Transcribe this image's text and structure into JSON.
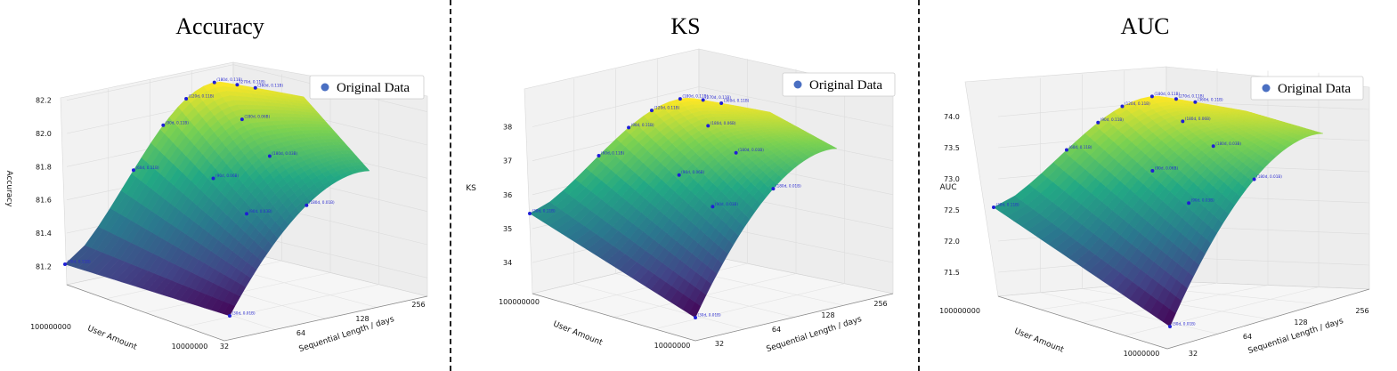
{
  "chart_data": [
    {
      "type": "surface3d",
      "title": "Accuracy",
      "zlabel": "Accuracy",
      "xlabel": "User Amount",
      "ylabel": "Sequential Length / days",
      "x_ticks": [
        "100000000",
        "10000000"
      ],
      "y_ticks": [
        "32",
        "64",
        "128",
        "256"
      ],
      "z_ticks": [
        "81.2",
        "81.4",
        "81.6",
        "81.8",
        "82.0",
        "82.2"
      ],
      "zlim": [
        81.1,
        82.3
      ],
      "legend": "Original Data",
      "legend_position": "top-right",
      "grid": true,
      "points": [
        {
          "label": "(30d, 0.01B)",
          "z": 81.19
        },
        {
          "label": "(30d, 0.11B)",
          "z": 81.22
        },
        {
          "label": "(60d, 0.11B)",
          "z": 81.88
        },
        {
          "label": "(90d, 0.11B)",
          "z": 82.12
        },
        {
          "label": "(120d, 0.11B)",
          "z": 82.19
        },
        {
          "label": "(180d, 0.11B)",
          "z": 82.28
        },
        {
          "label": "(270d, 0.11B)",
          "z": 82.31
        },
        {
          "label": "(360d, 0.11B)",
          "z": 82.31
        },
        {
          "label": "(90d, 0.06B)",
          "z": 81.73
        },
        {
          "label": "(90d, 0.03B)",
          "z": 81.68
        },
        {
          "label": "(180d, 0.06B)",
          "z": 82.11
        },
        {
          "label": "(180d, 0.03B)",
          "z": 82.0
        },
        {
          "label": "(180d, 0.01B)",
          "z": 81.78
        }
      ]
    },
    {
      "type": "surface3d",
      "title": "KS",
      "zlabel": "KS",
      "xlabel": "User Amount",
      "ylabel": "Sequential Length / days",
      "x_ticks": [
        "100000000",
        "10000000"
      ],
      "y_ticks": [
        "32",
        "64",
        "128",
        "256"
      ],
      "z_ticks": [
        "34",
        "35",
        "36",
        "37",
        "38"
      ],
      "zlim": [
        33.4,
        38.8
      ],
      "legend": "Original Data",
      "legend_position": "top-right",
      "grid": true,
      "points": [
        {
          "label": "(30d, 0.01B)",
          "z": 33.5
        },
        {
          "label": "(30d, 0.11B)",
          "z": 35.5
        },
        {
          "label": "(60d, 0.11B)",
          "z": 37.6
        },
        {
          "label": "(90d, 0.11B)",
          "z": 38.0
        },
        {
          "label": "(120d, 0.11B)",
          "z": 38.3
        },
        {
          "label": "(180d, 0.11B)",
          "z": 38.6
        },
        {
          "label": "(270d, 0.11B)",
          "z": 38.7
        },
        {
          "label": "(360d, 0.11B)",
          "z": 38.8
        },
        {
          "label": "(90d, 0.06B)",
          "z": 37.0
        },
        {
          "label": "(90d, 0.03B)",
          "z": 36.7
        },
        {
          "label": "(180d, 0.06B)",
          "z": 38.2
        },
        {
          "label": "(180d, 0.03B)",
          "z": 37.8
        },
        {
          "label": "(180d, 0.01B)",
          "z": 37.2
        }
      ]
    },
    {
      "type": "surface3d",
      "title": "AUC",
      "zlabel": "AUC",
      "xlabel": "User Amount",
      "ylabel": "Sequential Length / days",
      "x_ticks": [
        "100000000",
        "10000000"
      ],
      "y_ticks": [
        "32",
        "64",
        "128",
        "256"
      ],
      "z_ticks": [
        "71.5",
        "72.0",
        "72.5",
        "73.0",
        "73.5",
        "74.0"
      ],
      "zlim": [
        71.2,
        74.3
      ],
      "legend": "Original Data",
      "legend_position": "top-right",
      "grid": true,
      "points": [
        {
          "label": "(30d, 0.01B)",
          "z": 71.3
        },
        {
          "label": "(30d, 0.11B)",
          "z": 72.4
        },
        {
          "label": "(60d, 0.11B)",
          "z": 73.7
        },
        {
          "label": "(90d, 0.11B)",
          "z": 74.0
        },
        {
          "label": "(120d, 0.11B)",
          "z": 74.1
        },
        {
          "label": "(180d, 0.11B)",
          "z": 74.2
        },
        {
          "label": "(270d, 0.11B)",
          "z": 74.25
        },
        {
          "label": "(360d, 0.11B)",
          "z": 74.3
        },
        {
          "label": "(90d, 0.06B)",
          "z": 73.3
        },
        {
          "label": "(90d, 0.03B)",
          "z": 73.1
        },
        {
          "label": "(180d, 0.06B)",
          "z": 74.0
        },
        {
          "label": "(180d, 0.03B)",
          "z": 73.8
        },
        {
          "label": "(180d, 0.01B)",
          "z": 73.5
        }
      ]
    }
  ]
}
